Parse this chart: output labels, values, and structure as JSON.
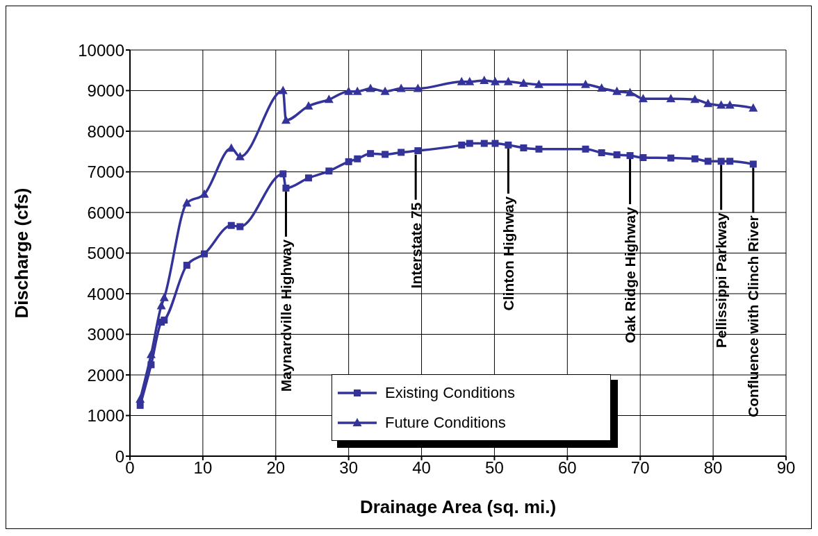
{
  "chart_data": {
    "type": "line",
    "xlabel": "Drainage Area (sq. mi.)",
    "ylabel": "Discharge (cfs)",
    "xlim": [
      0,
      90
    ],
    "xticks": [
      0,
      10,
      20,
      30,
      40,
      50,
      60,
      70,
      80,
      90
    ],
    "ylim": [
      0,
      10000
    ],
    "yticks": [
      0,
      1000,
      2000,
      3000,
      4000,
      5000,
      6000,
      7000,
      8000,
      9000,
      10000
    ],
    "grid": true,
    "legend": "bottom",
    "series": [
      {
        "name": "Existing Conditions",
        "color": "#333399",
        "marker": "square",
        "x": [
          1.4,
          2.9,
          4.3,
          4.7,
          7.8,
          10.2,
          13.9,
          15.1,
          21.0,
          21.4,
          24.5,
          27.3,
          30.0,
          31.2,
          33.0,
          35.0,
          37.2,
          39.5,
          45.5,
          46.6,
          48.6,
          50.1,
          51.9,
          54.0,
          56.1,
          62.5,
          64.7,
          66.8,
          68.6,
          70.4,
          74.2,
          77.5,
          79.3,
          81.1,
          82.3,
          85.5
        ],
        "values": [
          1250,
          2250,
          3300,
          3350,
          4700,
          4980,
          5680,
          5650,
          6950,
          6600,
          6850,
          7020,
          7250,
          7320,
          7450,
          7430,
          7480,
          7520,
          7660,
          7700,
          7700,
          7700,
          7660,
          7590,
          7560,
          7560,
          7470,
          7420,
          7400,
          7350,
          7340,
          7320,
          7260,
          7260,
          7260,
          7190
        ]
      },
      {
        "name": "Future Conditions",
        "color": "#333399",
        "marker": "triangle",
        "x": [
          1.4,
          2.9,
          4.3,
          4.7,
          7.8,
          10.2,
          13.9,
          15.1,
          21.0,
          21.4,
          24.5,
          27.3,
          30.0,
          31.2,
          33.0,
          35.0,
          37.2,
          39.5,
          45.5,
          46.6,
          48.6,
          50.1,
          51.9,
          54.0,
          56.1,
          62.5,
          64.7,
          66.8,
          68.6,
          70.4,
          74.2,
          77.5,
          79.3,
          81.1,
          82.3,
          85.5
        ],
        "values": [
          1400,
          2500,
          3700,
          3900,
          6230,
          6450,
          7580,
          7370,
          9000,
          8270,
          8620,
          8780,
          8980,
          8980,
          9050,
          8980,
          9050,
          9050,
          9220,
          9220,
          9250,
          9220,
          9220,
          9180,
          9150,
          9150,
          9060,
          8980,
          8950,
          8800,
          8800,
          8780,
          8680,
          8640,
          8640,
          8570
        ]
      }
    ],
    "annotations": [
      {
        "text": "Maynardville Highway",
        "x": 21.4,
        "y": 6600
      },
      {
        "text": "Interstate 75",
        "x": 39.2,
        "y": 7510
      },
      {
        "text": "Clinton Highway",
        "x": 51.9,
        "y": 7660
      },
      {
        "text": "Oak Ridge Highway",
        "x": 68.6,
        "y": 7400
      },
      {
        "text": "Pellissippi Parkway",
        "x": 81.1,
        "y": 7260
      },
      {
        "text": "Confluence with Clinch River",
        "x": 85.5,
        "y": 7190
      }
    ]
  }
}
